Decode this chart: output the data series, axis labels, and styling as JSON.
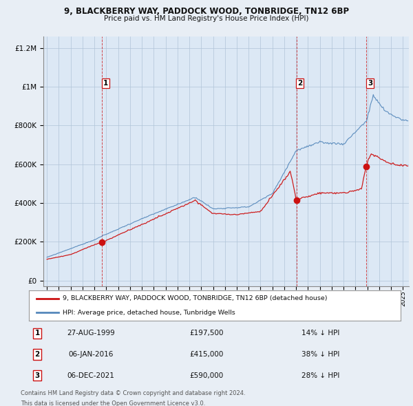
{
  "title1": "9, BLACKBERRY WAY, PADDOCK WOOD, TONBRIDGE, TN12 6BP",
  "title2": "Price paid vs. HM Land Registry's House Price Index (HPI)",
  "bg_color": "#e8eef5",
  "plot_bg_color": "#dce8f5",
  "grid_color": "#b0c4d8",
  "sale_year_nums": [
    1999.65,
    2016.02,
    2021.92
  ],
  "sale_prices": [
    197500,
    415000,
    590000
  ],
  "sale_labels": [
    "1",
    "2",
    "3"
  ],
  "ylabel_ticks": [
    0,
    200000,
    400000,
    600000,
    800000,
    1000000,
    1200000
  ],
  "ylabel_labels": [
    "£0",
    "£200K",
    "£400K",
    "£600K",
    "£800K",
    "£1M",
    "£1.2M"
  ],
  "xmin": 1994.7,
  "xmax": 2025.5,
  "ymin": -30000,
  "ymax": 1260000,
  "red_line_color": "#cc1111",
  "blue_line_color": "#5588bb",
  "dashed_color": "#cc1111",
  "legend_red_label": "9, BLACKBERRY WAY, PADDOCK WOOD, TONBRIDGE, TN12 6BP (detached house)",
  "legend_blue_label": "HPI: Average price, detached house, Tunbridge Wells",
  "table_rows": [
    [
      "1",
      "27-AUG-1999",
      "£197,500",
      "14% ↓ HPI"
    ],
    [
      "2",
      "06-JAN-2016",
      "£415,000",
      "38% ↓ HPI"
    ],
    [
      "3",
      "06-DEC-2021",
      "£590,000",
      "28% ↓ HPI"
    ]
  ],
  "footnote1": "Contains HM Land Registry data © Crown copyright and database right 2024.",
  "footnote2": "This data is licensed under the Open Government Licence v3.0."
}
